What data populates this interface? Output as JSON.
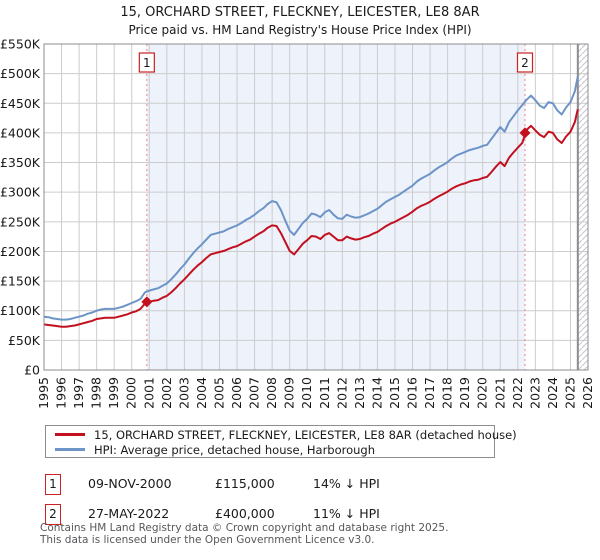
{
  "title": "15, ORCHARD STREET, FLECKNEY, LEICESTER, LE8 8AR",
  "subtitle": "Price paid vs. HM Land Registry's House Price Index (HPI)",
  "colors": {
    "price_paid_line": "#c3101f",
    "hpi_line": "#6d94c7",
    "between_sales_shading": "#edf2fb",
    "sale_dashed_line": "#f28080",
    "grid": "#cccccc",
    "plot_border": "#8c8c91",
    "hatch": "#c4c4ca"
  },
  "chart_data": {
    "type": "line",
    "title": "15, ORCHARD STREET, FLECKNEY, LEICESTER, LE8 8AR — Price paid vs. HM Land Registry's House Price Index (HPI)",
    "unit": "GBP thousands",
    "xlim": [
      1995,
      2026
    ],
    "ylim": [
      0,
      550
    ],
    "grid": true,
    "legend_position": "bottom",
    "x_ticks": [
      1995,
      1996,
      1997,
      1998,
      1999,
      2000,
      2001,
      2002,
      2003,
      2004,
      2005,
      2006,
      2007,
      2008,
      2009,
      2010,
      2011,
      2012,
      2013,
      2014,
      2015,
      2016,
      2017,
      2018,
      2019,
      2020,
      2021,
      2022,
      2023,
      2024,
      2025,
      2026
    ],
    "y_ticks": [
      {
        "value": 0,
        "label": "£0"
      },
      {
        "value": 50,
        "label": "£50K"
      },
      {
        "value": 100,
        "label": "£100K"
      },
      {
        "value": 150,
        "label": "£150K"
      },
      {
        "value": 200,
        "label": "£200K"
      },
      {
        "value": 250,
        "label": "£250K"
      },
      {
        "value": 300,
        "label": "£300K"
      },
      {
        "value": 350,
        "label": "£350K"
      },
      {
        "value": 400,
        "label": "£400K"
      },
      {
        "value": 450,
        "label": "£450K"
      },
      {
        "value": 500,
        "label": "£500K"
      },
      {
        "value": 550,
        "label": "£550K"
      }
    ],
    "x": [
      1995,
      1995.25,
      1995.5,
      1995.75,
      1996,
      1996.25,
      1996.5,
      1996.75,
      1997,
      1997.25,
      1997.5,
      1997.75,
      1998,
      1998.25,
      1998.5,
      1998.75,
      1999,
      1999.25,
      1999.5,
      1999.75,
      2000,
      2000.25,
      2000.5,
      2000.75,
      2001,
      2001.25,
      2001.5,
      2001.75,
      2002,
      2002.25,
      2002.5,
      2002.75,
      2003,
      2003.25,
      2003.5,
      2003.75,
      2004,
      2004.25,
      2004.5,
      2004.75,
      2005,
      2005.25,
      2005.5,
      2005.75,
      2006,
      2006.25,
      2006.5,
      2006.75,
      2007,
      2007.25,
      2007.5,
      2007.75,
      2008,
      2008.25,
      2008.5,
      2008.75,
      2009,
      2009.25,
      2009.5,
      2009.75,
      2010,
      2010.25,
      2010.5,
      2010.75,
      2011,
      2011.25,
      2011.5,
      2011.75,
      2012,
      2012.25,
      2012.5,
      2012.75,
      2013,
      2013.25,
      2013.5,
      2013.75,
      2014,
      2014.25,
      2014.5,
      2014.75,
      2015,
      2015.25,
      2015.5,
      2015.75,
      2016,
      2016.25,
      2016.5,
      2016.75,
      2017,
      2017.25,
      2017.5,
      2017.75,
      2018,
      2018.25,
      2018.5,
      2018.75,
      2019,
      2019.25,
      2019.5,
      2019.75,
      2020,
      2020.25,
      2020.5,
      2020.75,
      2021,
      2021.25,
      2021.5,
      2021.75,
      2022,
      2022.25,
      2022.5,
      2022.75,
      2023,
      2023.25,
      2023.5,
      2023.75,
      2024,
      2024.25,
      2024.5,
      2024.75,
      2025,
      2025.25,
      2025.42
    ],
    "series": [
      {
        "name": "15, ORCHARD STREET, FLECKNEY, LEICESTER, LE8 8AR (detached house)",
        "color": "#c3101f",
        "values": [
          77,
          76,
          75,
          74,
          73,
          73,
          74,
          75,
          77,
          79,
          81,
          83,
          86,
          87,
          88,
          88,
          88,
          90,
          92,
          94,
          97,
          99,
          103,
          112,
          115,
          117,
          118,
          122,
          125,
          131,
          138,
          146,
          153,
          161,
          169,
          176,
          182,
          189,
          195,
          197,
          199,
          201,
          204,
          207,
          209,
          213,
          217,
          220,
          225,
          230,
          234,
          240,
          244,
          243,
          231,
          216,
          201,
          195,
          204,
          213,
          219,
          226,
          225,
          221,
          228,
          231,
          225,
          219,
          219,
          225,
          222,
          220,
          221,
          224,
          226,
          230,
          233,
          238,
          243,
          247,
          250,
          254,
          258,
          262,
          267,
          273,
          277,
          280,
          284,
          289,
          293,
          297,
          301,
          306,
          310,
          313,
          315,
          318,
          320,
          321,
          324,
          326,
          334,
          343,
          351,
          344,
          358,
          367,
          375,
          383,
          405,
          412,
          404,
          397,
          393,
          402,
          400,
          389,
          383,
          394,
          402,
          418,
          440
        ]
      },
      {
        "name": "HPI: Average price, detached house, Harborough",
        "color": "#6d94c7",
        "values": [
          90,
          89,
          87,
          86,
          85,
          85,
          86,
          88,
          90,
          92,
          95,
          97,
          100,
          102,
          103,
          103,
          103,
          105,
          107,
          110,
          113,
          116,
          120,
          131,
          134,
          136,
          138,
          142,
          146,
          153,
          161,
          170,
          178,
          188,
          197,
          205,
          212,
          220,
          228,
          230,
          232,
          234,
          238,
          241,
          244,
          248,
          253,
          257,
          262,
          268,
          273,
          280,
          285,
          283,
          270,
          252,
          235,
          228,
          238,
          248,
          255,
          264,
          262,
          258,
          266,
          270,
          262,
          256,
          255,
          262,
          259,
          257,
          258,
          261,
          264,
          268,
          272,
          278,
          284,
          288,
          292,
          296,
          301,
          306,
          311,
          318,
          323,
          327,
          331,
          337,
          342,
          346,
          351,
          357,
          362,
          365,
          368,
          371,
          373,
          375,
          378,
          380,
          390,
          400,
          410,
          402,
          418,
          428,
          438,
          447,
          456,
          463,
          455,
          446,
          442,
          452,
          450,
          438,
          431,
          443,
          452,
          470,
          495
        ]
      }
    ],
    "sale_markers": [
      {
        "label": "1",
        "year": 2000.86,
        "value": 115
      },
      {
        "label": "2",
        "year": 2022.41,
        "value": 400
      }
    ],
    "shaded_region": {
      "from": 2000.86,
      "to": 2022.41
    },
    "hatched_region": {
      "from": 2025.42,
      "to": 2026
    }
  },
  "legend": {
    "items": [
      {
        "label": "15, ORCHARD STREET, FLECKNEY, LEICESTER, LE8 8AR (detached house)",
        "color": "#c3101f"
      },
      {
        "label": "HPI: Average price, detached house, Harborough",
        "color": "#6d94c7"
      }
    ]
  },
  "annotations": [
    {
      "marker": "1",
      "date": "09-NOV-2000",
      "price": "£115,000",
      "vs_hpi": "14% ↓ HPI"
    },
    {
      "marker": "2",
      "date": "27-MAY-2022",
      "price": "£400,000",
      "vs_hpi": "11% ↓ HPI"
    }
  ],
  "footer": {
    "line1": "Contains HM Land Registry data © Crown copyright and database right 2025.",
    "line2": "This data is licensed under the Open Government Licence v3.0."
  }
}
